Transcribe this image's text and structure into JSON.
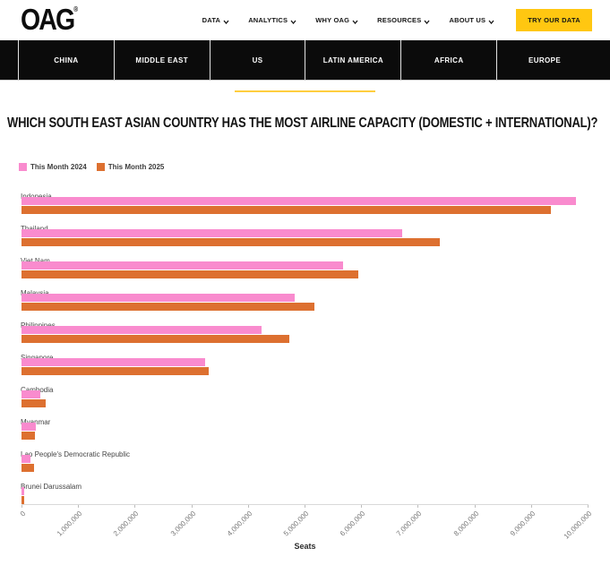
{
  "header": {
    "logo": "OAG",
    "logo_mark": "®",
    "nav": [
      {
        "label": "DATA"
      },
      {
        "label": "ANALYTICS"
      },
      {
        "label": "WHY OAG"
      },
      {
        "label": "RESOURCES"
      },
      {
        "label": "ABOUT US"
      }
    ],
    "cta": "TRY OUR DATA"
  },
  "tabs": {
    "items": [
      {
        "label": "CHINA"
      },
      {
        "label": "MIDDLE EAST"
      },
      {
        "label": "US"
      },
      {
        "label": "LATIN AMERICA"
      },
      {
        "label": "AFRICA"
      },
      {
        "label": "EUROPE"
      }
    ]
  },
  "title": "WHICH SOUTH EAST ASIAN COUNTRY HAS THE MOST AIRLINE CAPACITY (DOMESTIC + INTERNATIONAL)?",
  "colors": {
    "accent_yellow": "#ffc711",
    "pink_2024": "#f98bce",
    "orange_2025": "#dd7030",
    "tab_bar_black": "#0b0b0b"
  },
  "chart_data": {
    "type": "bar",
    "orientation": "horizontal",
    "title": "Which South East Asian country has the most airline capacity (domestic + international)?",
    "categories": [
      "Indonesia",
      "Thailand",
      "Viet Nam",
      "Malaysia",
      "Philippines",
      "Singapore",
      "Cambodia",
      "Myanmar",
      "Lao People's Democratic Republic",
      "Brunei Darussalam"
    ],
    "series": [
      {
        "name": "This Month 2024",
        "color": "#f98bce",
        "values": [
          9800000,
          6730000,
          5680000,
          4830000,
          4240000,
          3240000,
          330000,
          250000,
          160000,
          40000
        ]
      },
      {
        "name": "This Month 2025",
        "color": "#dd7030",
        "values": [
          9350000,
          7390000,
          5950000,
          5170000,
          4730000,
          3310000,
          430000,
          240000,
          220000,
          55000
        ]
      }
    ],
    "xlabel": "Seats",
    "xlim": [
      0,
      10000000
    ],
    "x_ticks": [
      "0",
      "1,000,000",
      "2,000,000",
      "3,000,000",
      "4,000,000",
      "5,000,000",
      "6,000,000",
      "7,000,000",
      "8,000,000",
      "9,000,000",
      "10,000,000"
    ],
    "legend_position": "top-left",
    "grid": false
  }
}
